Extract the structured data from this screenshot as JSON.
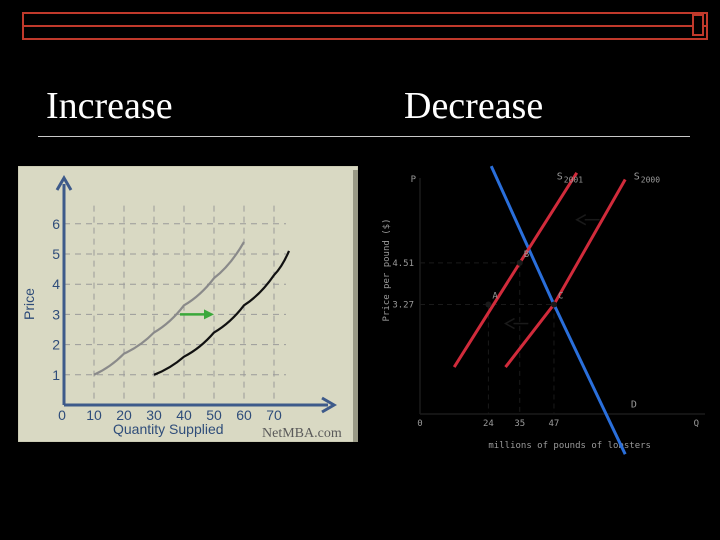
{
  "slide": {
    "left_heading": "Increase",
    "right_heading": "Decrease",
    "accent_color": "#c0392b"
  },
  "chart_data": [
    {
      "type": "line",
      "title": "",
      "xlabel": "Quantity Supplied",
      "ylabel": "Price",
      "watermark": "NetMBA.com",
      "x_ticks": [
        "0",
        "10",
        "20",
        "30",
        "40",
        "50",
        "60",
        "70"
      ],
      "y_ticks": [
        "1",
        "2",
        "3",
        "4",
        "5",
        "6"
      ],
      "xlim": [
        0,
        70
      ],
      "ylim": [
        0,
        6.5
      ],
      "grid": true,
      "series": [
        {
          "color": "#8a8a8a",
          "points": [
            [
              10,
              1
            ],
            [
              20,
              1.7
            ],
            [
              30,
              2.4
            ],
            [
              40,
              3.3
            ],
            [
              50,
              4.2
            ],
            [
              60,
              5.4
            ]
          ]
        },
        {
          "color": "#111111",
          "points": [
            [
              30,
              1
            ],
            [
              40,
              1.6
            ],
            [
              50,
              2.4
            ],
            [
              60,
              3.3
            ],
            [
              70,
              4.3
            ],
            [
              75,
              5.1
            ]
          ]
        }
      ],
      "shift_arrow": {
        "from": [
          40,
          3
        ],
        "to": [
          50,
          3
        ],
        "color": "#3aa83a"
      }
    },
    {
      "type": "line",
      "title": "",
      "xlabel": "millions of pounds of lobsters",
      "ylabel": "Price per pound ($)",
      "axis_end_labels": {
        "y": "P",
        "x": "Q",
        "origin": "0"
      },
      "x_ticks": [
        {
          "value": 24,
          "label": "24"
        },
        {
          "value": 35,
          "label": "35"
        },
        {
          "value": 47,
          "label": "47"
        }
      ],
      "y_ticks": [
        {
          "value": 4.51,
          "label": "4.51"
        },
        {
          "value": 3.27,
          "label": "3.27"
        }
      ],
      "xlim": [
        0,
        100
      ],
      "ylim": [
        0,
        8
      ],
      "series": [
        {
          "name": "D",
          "color": "#2a6fdb",
          "points": [
            [
              25,
              7.4
            ],
            [
              47,
              3.27
            ],
            [
              72,
              -1.2
            ]
          ],
          "label_at": [
            74,
            0.2
          ]
        },
        {
          "name": "S2001",
          "label_sub": "2001",
          "label_main": "S",
          "color": "#d12b3b",
          "points": [
            [
              12,
              1.4
            ],
            [
              35,
              4.51
            ],
            [
              55,
              7.2
            ]
          ],
          "label_at": [
            48,
            7.0
          ]
        },
        {
          "name": "S2000",
          "label_sub": "2000",
          "label_main": "S",
          "color": "#d12b3b",
          "points": [
            [
              30,
              1.4
            ],
            [
              47,
              3.27
            ],
            [
              72,
              7.0
            ]
          ],
          "label_at": [
            75,
            7.0
          ]
        }
      ],
      "points": [
        {
          "label": "A",
          "x": 24,
          "y": 3.27
        },
        {
          "label": "B",
          "x": 35,
          "y": 4.51
        },
        {
          "label": "C",
          "x": 47,
          "y": 3.27
        }
      ],
      "shift_arrows": [
        {
          "from": [
            63,
            5.8
          ],
          "to": [
            55,
            5.8
          ]
        },
        {
          "from": [
            38,
            2.7
          ],
          "to": [
            30,
            2.7
          ]
        }
      ]
    }
  ]
}
